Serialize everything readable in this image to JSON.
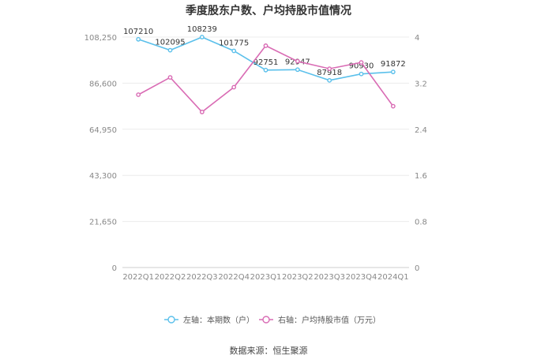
{
  "chart_data": {
    "type": "line",
    "title": "季度股东户数、户均持股市值情况",
    "categories": [
      "2022Q1",
      "2022Q2",
      "2022Q3",
      "2022Q4",
      "2023Q1",
      "2023Q2",
      "2023Q3",
      "2023Q4",
      "2024Q1"
    ],
    "left_axis": {
      "ylim": [
        0,
        108250
      ],
      "ticks": [
        0,
        21650,
        43300,
        64950,
        86600,
        108250
      ],
      "tick_labels": [
        "0",
        "21,650",
        "43,300",
        "64,950",
        "86,600",
        "108,250"
      ]
    },
    "right_axis": {
      "ylim": [
        0,
        4
      ],
      "ticks": [
        0,
        0.8,
        1.6,
        2.4,
        3.2,
        4
      ],
      "tick_labels": [
        "0",
        "0.8",
        "1.6",
        "2.4",
        "3.2",
        "4"
      ]
    },
    "series": [
      {
        "name": "左轴：本期数（户）",
        "axis": "left",
        "color": "#5bc0eb",
        "values": [
          107210,
          102095,
          108239,
          101775,
          92751,
          92947,
          87918,
          90930,
          91872
        ],
        "labels": [
          "107210",
          "102095",
          "108239",
          "101775",
          "92751",
          "92947",
          "87918",
          "90930",
          "91872"
        ]
      },
      {
        "name": "右轴：户均持股市值（万元）",
        "axis": "right",
        "color": "#d96bb4",
        "values": [
          3.0,
          3.3,
          2.7,
          3.13,
          3.85,
          3.58,
          3.45,
          3.56,
          2.8
        ]
      }
    ],
    "grid": true,
    "legend_position": "bottom"
  },
  "source": "数据来源：恒生聚源"
}
